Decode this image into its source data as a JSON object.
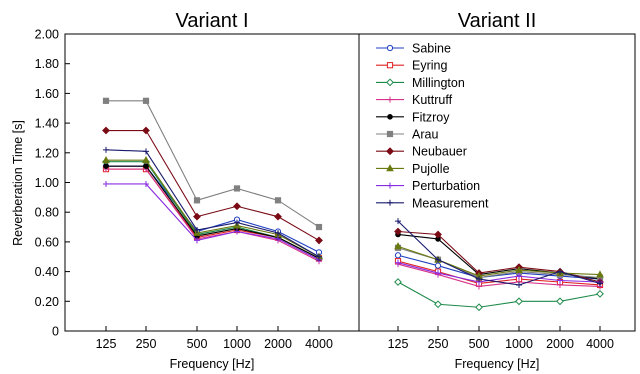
{
  "chart_data": [
    {
      "type": "line",
      "title": "Variant I",
      "xlabel": "Frequency [Hz]",
      "ylabel": "Reverberation Time [s]",
      "categories": [
        "125",
        "250",
        "500",
        "1000",
        "2000",
        "4000"
      ],
      "ylim": [
        0,
        2.0
      ],
      "yticks": [
        "0",
        "0.20",
        "0.40",
        "0.60",
        "0.80",
        "1.00",
        "1.20",
        "1.40",
        "1.60",
        "1.80",
        "2.00"
      ],
      "grid": false,
      "series": [
        {
          "name": "Sabine",
          "color": "#1f3fbf",
          "marker": "circle",
          "values": [
            1.11,
            1.11,
            0.67,
            0.75,
            0.67,
            0.53
          ]
        },
        {
          "name": "Eyring",
          "color": "#e02020",
          "marker": "square",
          "values": [
            1.09,
            1.09,
            0.63,
            0.68,
            0.63,
            0.49
          ]
        },
        {
          "name": "Millington",
          "color": "#1e8a4a",
          "marker": "diamond",
          "values": [
            1.14,
            1.14,
            0.65,
            0.7,
            0.63,
            0.49
          ]
        },
        {
          "name": "Kuttruff",
          "color": "#d6338a",
          "marker": "plus",
          "values": [
            1.09,
            1.09,
            0.62,
            0.67,
            0.61,
            0.47
          ]
        },
        {
          "name": "Fitzroy",
          "color": "#000000",
          "marker": "dot",
          "values": [
            1.11,
            1.11,
            0.64,
            0.69,
            0.63,
            0.49
          ]
        },
        {
          "name": "Arau",
          "color": "#808080",
          "marker": "square",
          "values": [
            1.55,
            1.55,
            0.88,
            0.96,
            0.88,
            0.7
          ]
        },
        {
          "name": "Neubauer",
          "color": "#7a0a14",
          "marker": "diamond",
          "values": [
            1.35,
            1.35,
            0.77,
            0.84,
            0.77,
            0.61
          ]
        },
        {
          "name": "Pujolle",
          "color": "#6b7a10",
          "marker": "triangle",
          "values": [
            1.15,
            1.15,
            0.66,
            0.71,
            0.65,
            0.5
          ]
        },
        {
          "name": "Perturbation",
          "color": "#8a2be2",
          "marker": "plus",
          "values": [
            0.99,
            0.99,
            0.61,
            0.67,
            0.62,
            0.48
          ]
        },
        {
          "name": "Measurement",
          "color": "#1a1a6e",
          "marker": "plus",
          "values": [
            1.22,
            1.21,
            0.68,
            0.73,
            0.66,
            0.5
          ]
        }
      ]
    },
    {
      "type": "line",
      "title": "Variant II",
      "xlabel": "Frequency [Hz]",
      "ylabel": "",
      "categories": [
        "125",
        "250",
        "500",
        "1000",
        "2000",
        "4000"
      ],
      "ylim": [
        0,
        2.0
      ],
      "grid": false,
      "legend": "top-left",
      "series": [
        {
          "name": "Sabine",
          "color": "#1f3fbf",
          "marker": "circle",
          "values": [
            0.51,
            0.44,
            0.36,
            0.39,
            0.37,
            0.35
          ]
        },
        {
          "name": "Eyring",
          "color": "#e02020",
          "marker": "square",
          "values": [
            0.47,
            0.4,
            0.32,
            0.35,
            0.33,
            0.31
          ]
        },
        {
          "name": "Millington",
          "color": "#1e8a4a",
          "marker": "diamond",
          "values": [
            0.33,
            0.18,
            0.16,
            0.2,
            0.2,
            0.25
          ]
        },
        {
          "name": "Kuttruff",
          "color": "#d6338a",
          "marker": "plus",
          "values": [
            0.45,
            0.38,
            0.3,
            0.33,
            0.31,
            0.3
          ]
        },
        {
          "name": "Fitzroy",
          "color": "#000000",
          "marker": "dot",
          "values": [
            0.65,
            0.62,
            0.38,
            0.42,
            0.39,
            0.35
          ]
        },
        {
          "name": "Arau",
          "color": "#808080",
          "marker": "square",
          "values": [
            0.56,
            0.48,
            0.36,
            0.4,
            0.38,
            0.36
          ]
        },
        {
          "name": "Neubauer",
          "color": "#7a0a14",
          "marker": "diamond",
          "values": [
            0.67,
            0.65,
            0.39,
            0.43,
            0.4,
            0.33
          ]
        },
        {
          "name": "Pujolle",
          "color": "#6b7a10",
          "marker": "triangle",
          "values": [
            0.57,
            0.48,
            0.37,
            0.41,
            0.39,
            0.38
          ]
        },
        {
          "name": "Perturbation",
          "color": "#8a2be2",
          "marker": "plus",
          "values": [
            0.46,
            0.39,
            0.33,
            0.37,
            0.34,
            0.33
          ]
        },
        {
          "name": "Measurement",
          "color": "#1a1a6e",
          "marker": "plus",
          "values": [
            0.74,
            0.48,
            0.35,
            0.31,
            0.4,
            0.32
          ]
        }
      ]
    }
  ]
}
